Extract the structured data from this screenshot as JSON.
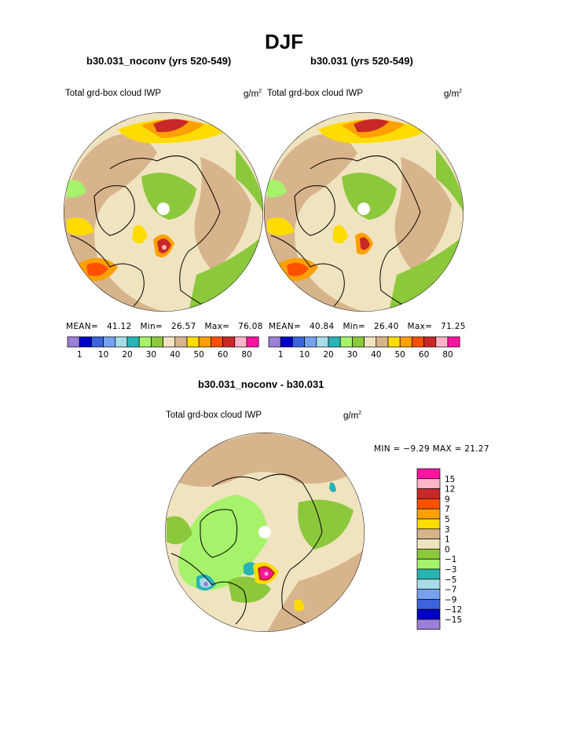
{
  "season_title": "DJF",
  "panels": [
    {
      "title": "b30.031_noconv (yrs 520-549)",
      "variable": "Total grd-box cloud IWP",
      "units": "g/m",
      "units_sup": "2",
      "stats": {
        "mean_label": "MEAN=",
        "mean": "41.12",
        "min_label": "Min=",
        "min": "26.57",
        "max_label": "Max=",
        "max": "76.08"
      }
    },
    {
      "title": "b30.031 (yrs 520-549)",
      "variable": "Total grd-box cloud IWP",
      "units": "g/m",
      "units_sup": "2",
      "stats": {
        "mean_label": "MEAN=",
        "mean": "40.84",
        "min_label": "Min=",
        "min": "26.40",
        "max_label": "Max=",
        "max": "71.25"
      }
    },
    {
      "title": "b30.031_noconv - b30.031",
      "variable": "Total grd-box cloud IWP",
      "units": "g/m",
      "units_sup": "2",
      "minmax": "MIN =  −9.29 MAX =  21.27"
    }
  ],
  "colorbar_horizontal": {
    "colors": [
      "#9b7fd8",
      "#0000c8",
      "#3c64dc",
      "#78a0f0",
      "#a8dce8",
      "#28b4b4",
      "#a6f26a",
      "#8cc83c",
      "#f0e4c0",
      "#d8b48c",
      "#ffdc00",
      "#ffa000",
      "#ff5000",
      "#c82828",
      "#ffb4c8",
      "#ff14a0"
    ],
    "tick_labels": [
      "1",
      "10",
      "20",
      "30",
      "40",
      "50",
      "60",
      "80"
    ]
  },
  "colorbar_vertical": {
    "colors_top_to_bottom": [
      "#ff14a0",
      "#ffb4c8",
      "#c82828",
      "#ff5000",
      "#ffa000",
      "#ffdc00",
      "#d8b48c",
      "#f0e4c0",
      "#8cc83c",
      "#a6f26a",
      "#28b4b4",
      "#a8dce8",
      "#78a0f0",
      "#3c64dc",
      "#0000c8",
      "#9b7fd8"
    ],
    "tick_labels": [
      "15",
      "12",
      "9",
      "7",
      "5",
      "3",
      "1",
      "0",
      "−1",
      "−3",
      "−5",
      "−7",
      "−9",
      "−12",
      "−15"
    ]
  },
  "chart_data": [
    {
      "type": "heatmap",
      "title": "b30.031_noconv (yrs 520-549)",
      "variable": "Total grd-box cloud IWP",
      "units": "g/m2",
      "projection": "north polar stereographic",
      "mean": 41.12,
      "min": 26.57,
      "max": 76.08,
      "contour_levels": [
        1,
        5,
        10,
        15,
        20,
        25,
        30,
        35,
        40,
        45,
        50,
        55,
        60,
        70,
        80
      ]
    },
    {
      "type": "heatmap",
      "title": "b30.031 (yrs 520-549)",
      "variable": "Total grd-box cloud IWP",
      "units": "g/m2",
      "projection": "north polar stereographic",
      "mean": 40.84,
      "min": 26.4,
      "max": 71.25,
      "contour_levels": [
        1,
        5,
        10,
        15,
        20,
        25,
        30,
        35,
        40,
        45,
        50,
        55,
        60,
        70,
        80
      ]
    },
    {
      "type": "heatmap",
      "title": "b30.031_noconv - b30.031",
      "variable": "Total grd-box cloud IWP",
      "units": "g/m2",
      "projection": "north polar stereographic",
      "min": -9.29,
      "max": 21.27,
      "contour_levels": [
        -15,
        -12,
        -9,
        -7,
        -5,
        -3,
        -1,
        0,
        1,
        3,
        5,
        7,
        9,
        12,
        15
      ]
    }
  ]
}
